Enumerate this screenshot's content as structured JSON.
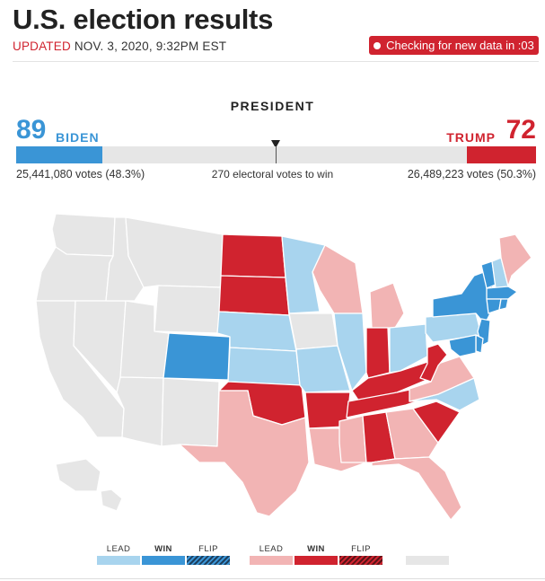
{
  "header": {
    "title": "U.S. election results",
    "updated_label": "UPDATED",
    "updated_time": "NOV. 3, 2020, 9:32PM EST",
    "refresh_text": "Checking for new data in :03"
  },
  "race": {
    "label": "PRESIDENT",
    "biden": {
      "electoral": "89",
      "name": "BIDEN",
      "votes": "25,441,080 votes (48.3%)",
      "share": 0.1654
    },
    "trump": {
      "electoral": "72",
      "name": "TRUMP",
      "votes": "26,489,223 votes (50.3%)",
      "share": 0.1338
    },
    "to_win": "270 electoral votes to win"
  },
  "colors": {
    "dem_lead": "#a8d4ee",
    "dem_win": "#3a95d6",
    "rep_lead": "#f2b4b4",
    "rep_win": "#d0232f",
    "no_result": "#e6e6e6"
  },
  "legend": {
    "labels": [
      "LEAD",
      "WIN",
      "FLIP",
      "LEAD",
      "WIN",
      "FLIP"
    ]
  },
  "states": {
    "WA": "none",
    "OR": "none",
    "CA": "none",
    "NV": "none",
    "ID": "none",
    "MT": "none",
    "WY": "none",
    "UT": "none",
    "AZ": "none",
    "NM": "none",
    "CO": "dem_win",
    "ND": "rep_win",
    "SD": "rep_win",
    "NE": "dem_lead",
    "KS": "dem_lead",
    "OK": "rep_win",
    "TX": "rep_lead",
    "MN": "dem_lead",
    "IA": "none",
    "MO": "dem_lead",
    "AR": "rep_win",
    "LA": "rep_lead",
    "WI": "rep_lead",
    "IL": "dem_lead",
    "MI": "rep_lead",
    "IN": "rep_win",
    "OH": "dem_lead",
    "KY": "rep_win",
    "TN": "rep_win",
    "MS": "rep_lead",
    "AL": "rep_win",
    "GA": "rep_lead",
    "FL": "rep_lead",
    "SC": "rep_win",
    "NC": "dem_lead",
    "VA": "rep_lead",
    "WV": "rep_win",
    "PA": "dem_lead",
    "NY": "dem_win",
    "VT": "dem_win",
    "NH": "dem_lead",
    "ME": "rep_lead",
    "MA": "dem_win",
    "CT": "dem_win",
    "RI": "dem_win",
    "NJ": "dem_win",
    "DE": "dem_win",
    "MD": "dem_win",
    "AK": "none",
    "HI": "none"
  }
}
